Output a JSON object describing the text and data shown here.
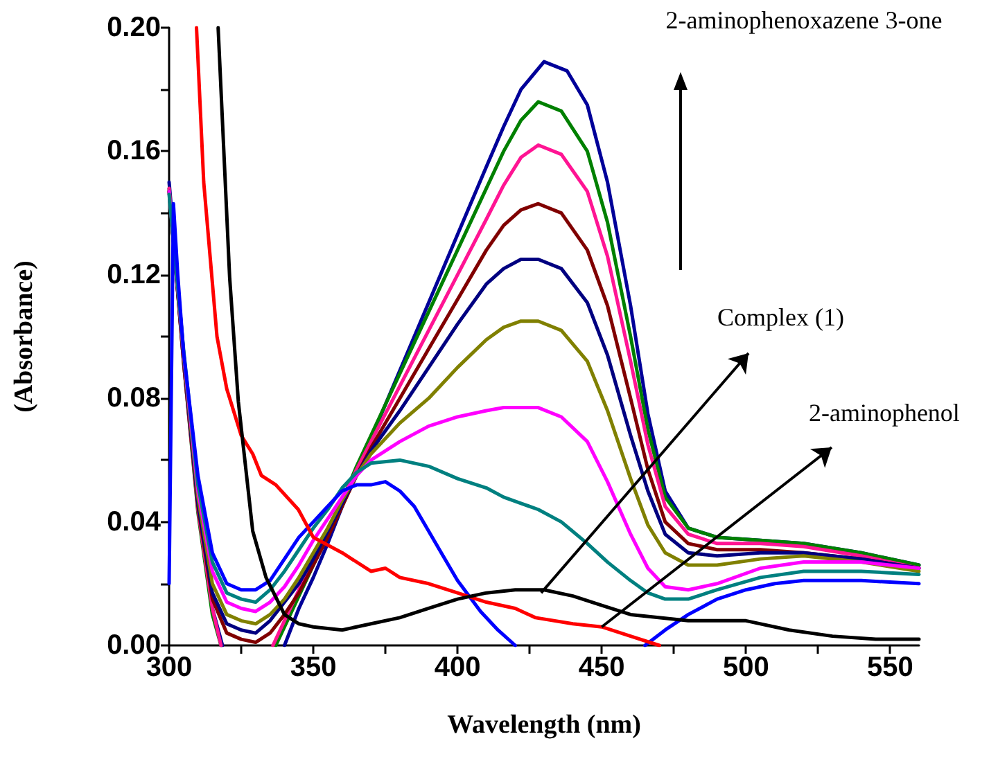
{
  "chart_data": {
    "type": "line",
    "xlabel": "Wavelength (nm)",
    "ylabel": "(Absorbance)",
    "xlim": [
      300,
      560
    ],
    "xticks": [
      300,
      {
        "value": 325,
        "label": null
      },
      350,
      {
        "value": 375,
        "label": null
      },
      400,
      {
        "value": 425,
        "label": null
      },
      450,
      {
        "value": 475,
        "label": null
      },
      500,
      {
        "value": 525,
        "label": null
      },
      550
    ],
    "ylim": [
      0,
      0.2
    ],
    "yticks": [
      {
        "value": 0,
        "label": "0.00"
      },
      {
        "value": 0.02,
        "label": null
      },
      {
        "value": 0.04,
        "label": "0.04"
      },
      {
        "value": 0.06,
        "label": null
      },
      {
        "value": 0.08,
        "label": "0.08"
      },
      {
        "value": 0.1,
        "label": null
      },
      {
        "value": 0.12,
        "label": "0.12"
      },
      {
        "value": 0.14,
        "label": null
      },
      {
        "value": 0.16,
        "label": "0.16"
      },
      {
        "value": 0.18,
        "label": null
      },
      {
        "value": 0.2,
        "label": "0.20"
      }
    ],
    "marker": "none",
    "line_style": "solid",
    "annotations": [
      "2-aminophenoxazene 3-one",
      {
        "text": "Complex (1)",
        "x": 429,
        "y": 0.017
      },
      {
        "text": "2-aminophenol",
        "x": 450,
        "y": 0.006
      }
    ],
    "series": [
      {
        "color": "#000099",
        "x": [
          300,
          305,
          310,
          315,
          318.5,
          329,
          340,
          345,
          350,
          355,
          360,
          365,
          370,
          380,
          390,
          400,
          410,
          416,
          422,
          430,
          438,
          445,
          452,
          460,
          466,
          472,
          480,
          490,
          505,
          520,
          540,
          560
        ],
        "values": [
          0.15,
          0.095,
          0.045,
          0.012,
          0,
          null,
          0,
          0.012,
          0.022,
          0.033,
          0.045,
          0.056,
          0.067,
          0.089,
          0.111,
          0.133,
          0.155,
          0.168,
          0.18,
          0.189,
          0.186,
          0.175,
          0.15,
          0.11,
          0.075,
          0.05,
          0.038,
          0.035,
          0.034,
          0.033,
          0.03,
          0.026
        ]
      },
      {
        "color": "#008000",
        "x": [
          300,
          305,
          310,
          315,
          318,
          328,
          337,
          345,
          350,
          355,
          360,
          365,
          370,
          380,
          390,
          400,
          410,
          416,
          422,
          428,
          436,
          445,
          452,
          460,
          466,
          472,
          480,
          490,
          505,
          520,
          540,
          560
        ],
        "values": [
          0.148,
          0.092,
          0.043,
          0.01,
          0,
          null,
          0,
          0.016,
          0.026,
          0.036,
          0.047,
          0.058,
          0.068,
          0.088,
          0.108,
          0.128,
          0.148,
          0.16,
          0.17,
          0.176,
          0.173,
          0.16,
          0.137,
          0.1,
          0.07,
          0.048,
          0.038,
          0.035,
          0.034,
          0.033,
          0.03,
          0.026
        ]
      },
      {
        "color": "#ff1493",
        "x": [
          300,
          305,
          310,
          315,
          318,
          327,
          336,
          345,
          350,
          355,
          360,
          365,
          370,
          380,
          390,
          400,
          410,
          416,
          422,
          428,
          436,
          445,
          452,
          460,
          466,
          472,
          480,
          490,
          505,
          520,
          540,
          560
        ],
        "values": [
          0.148,
          0.092,
          0.044,
          0.012,
          0,
          null,
          0,
          0.018,
          0.028,
          0.037,
          0.047,
          0.057,
          0.066,
          0.084,
          0.102,
          0.12,
          0.138,
          0.149,
          0.158,
          0.162,
          0.159,
          0.147,
          0.126,
          0.092,
          0.065,
          0.045,
          0.036,
          0.033,
          0.033,
          0.032,
          0.029,
          0.025
        ]
      },
      {
        "color": "#800000",
        "x": [
          300,
          305,
          310,
          315,
          320,
          325,
          330,
          335,
          340,
          345,
          350,
          355,
          360,
          365,
          370,
          380,
          390,
          400,
          410,
          416,
          422,
          428,
          436,
          445,
          452,
          460,
          466,
          472,
          480,
          490,
          505,
          520,
          540,
          560
        ],
        "values": [
          0.147,
          0.092,
          0.045,
          0.015,
          0.004,
          0.002,
          0.001,
          0.004,
          0.01,
          0.017,
          0.026,
          0.035,
          0.045,
          0.055,
          0.064,
          0.08,
          0.096,
          0.112,
          0.128,
          0.136,
          0.141,
          0.143,
          0.14,
          0.128,
          0.11,
          0.08,
          0.057,
          0.04,
          0.033,
          0.031,
          0.031,
          0.03,
          0.028,
          0.025
        ]
      },
      {
        "color": "#000080",
        "x": [
          300,
          305,
          310,
          315,
          320,
          325,
          330,
          335,
          340,
          345,
          350,
          355,
          360,
          365,
          370,
          380,
          390,
          400,
          410,
          416,
          422,
          428,
          436,
          445,
          452,
          460,
          466,
          472,
          480,
          490,
          505,
          520,
          540,
          560
        ],
        "values": [
          0.147,
          0.093,
          0.046,
          0.017,
          0.007,
          0.005,
          0.004,
          0.008,
          0.014,
          0.02,
          0.028,
          0.037,
          0.046,
          0.055,
          0.063,
          0.076,
          0.09,
          0.104,
          0.117,
          0.122,
          0.125,
          0.125,
          0.122,
          0.111,
          0.094,
          0.068,
          0.05,
          0.036,
          0.03,
          0.029,
          0.03,
          0.03,
          0.028,
          0.025
        ]
      },
      {
        "color": "#808000",
        "x": [
          300,
          305,
          310,
          315,
          320,
          325,
          330,
          335,
          340,
          345,
          350,
          355,
          360,
          365,
          370,
          380,
          390,
          400,
          410,
          416,
          422,
          428,
          436,
          445,
          452,
          460,
          466,
          472,
          480,
          490,
          505,
          520,
          540,
          560
        ],
        "values": [
          0.147,
          0.094,
          0.048,
          0.02,
          0.01,
          0.008,
          0.007,
          0.01,
          0.015,
          0.022,
          0.03,
          0.038,
          0.047,
          0.055,
          0.062,
          0.072,
          0.08,
          0.09,
          0.099,
          0.103,
          0.105,
          0.105,
          0.102,
          0.092,
          0.076,
          0.054,
          0.039,
          0.03,
          0.026,
          0.026,
          0.028,
          0.029,
          0.027,
          0.024
        ]
      },
      {
        "color": "#ff00ff",
        "x": [
          300,
          305,
          310,
          315,
          320,
          325,
          330,
          335,
          340,
          345,
          350,
          355,
          360,
          365,
          370,
          380,
          390,
          400,
          410,
          416,
          422,
          428,
          436,
          445,
          452,
          460,
          466,
          472,
          480,
          490,
          505,
          520,
          540,
          560
        ],
        "values": [
          0.147,
          0.095,
          0.05,
          0.024,
          0.014,
          0.012,
          0.011,
          0.014,
          0.019,
          0.026,
          0.034,
          0.041,
          0.048,
          0.055,
          0.06,
          0.066,
          0.071,
          0.074,
          0.076,
          0.077,
          0.077,
          0.077,
          0.074,
          0.066,
          0.053,
          0.036,
          0.025,
          0.019,
          0.018,
          0.02,
          0.025,
          0.027,
          0.027,
          0.025
        ]
      },
      {
        "color": "#008080",
        "x": [
          300,
          305,
          310,
          315,
          320,
          325,
          330,
          335,
          340,
          345,
          350,
          355,
          360,
          365,
          370,
          380,
          390,
          400,
          410,
          416,
          422,
          428,
          436,
          445,
          452,
          460,
          466,
          472,
          480,
          490,
          505,
          520,
          540,
          560
        ],
        "values": [
          0.146,
          0.096,
          0.052,
          0.027,
          0.017,
          0.015,
          0.014,
          0.018,
          0.024,
          0.031,
          0.038,
          0.044,
          0.051,
          0.056,
          0.059,
          0.06,
          0.058,
          0.054,
          0.051,
          0.048,
          0.046,
          0.044,
          0.04,
          0.033,
          0.027,
          0.021,
          0.017,
          0.015,
          0.015,
          0.018,
          0.022,
          0.024,
          0.024,
          0.023
        ]
      },
      {
        "color": "#0000ff",
        "x": [
          300,
          301.5,
          303,
          305,
          310,
          315,
          320,
          325,
          330,
          335,
          340,
          345,
          350,
          355,
          360,
          365,
          370,
          375,
          380,
          385,
          390,
          395,
          400,
          408,
          414,
          420,
          443,
          465,
          472,
          480,
          490,
          500,
          510,
          520,
          540,
          560
        ],
        "values": [
          0.02,
          0.143,
          0.12,
          0.095,
          0.055,
          0.03,
          0.02,
          0.018,
          0.018,
          0.021,
          0.028,
          0.035,
          0.04,
          0.045,
          0.05,
          0.052,
          0.052,
          0.053,
          0.05,
          0.045,
          0.037,
          0.029,
          0.021,
          0.011,
          0.005,
          0,
          null,
          0,
          0.005,
          0.01,
          0.015,
          0.018,
          0.02,
          0.021,
          0.021,
          0.02
        ]
      },
      {
        "color": "#ff0000",
        "x": [
          309.5,
          312,
          316.6,
          320,
          325,
          329,
          332,
          337,
          344.8,
          350,
          360,
          370,
          375,
          380,
          390,
          400,
          410,
          420,
          427,
          440,
          450,
          460,
          470
        ],
        "values": [
          0.2,
          0.15,
          0.1,
          0.083,
          0.068,
          0.062,
          0.055,
          0.052,
          0.044,
          0.035,
          0.03,
          0.024,
          0.025,
          0.022,
          0.02,
          0.017,
          0.014,
          0.012,
          0.009,
          0.007,
          0.006,
          0.003,
          0
        ]
      },
      {
        "color": "#000000",
        "x": [
          317,
          321,
          324,
          329,
          333.6,
          340,
          345,
          350,
          360,
          370,
          380,
          390,
          400,
          410,
          420,
          430,
          440,
          450,
          460,
          480,
          500,
          515,
          530,
          545,
          560
        ],
        "values": [
          0.2,
          0.119,
          0.079,
          0.037,
          0.022,
          0.01,
          0.007,
          0.006,
          0.005,
          0.007,
          0.009,
          0.012,
          0.015,
          0.017,
          0.018,
          0.018,
          0.016,
          0.013,
          0.01,
          0.008,
          0.008,
          0.005,
          0.003,
          0.002,
          0.002
        ]
      }
    ]
  }
}
